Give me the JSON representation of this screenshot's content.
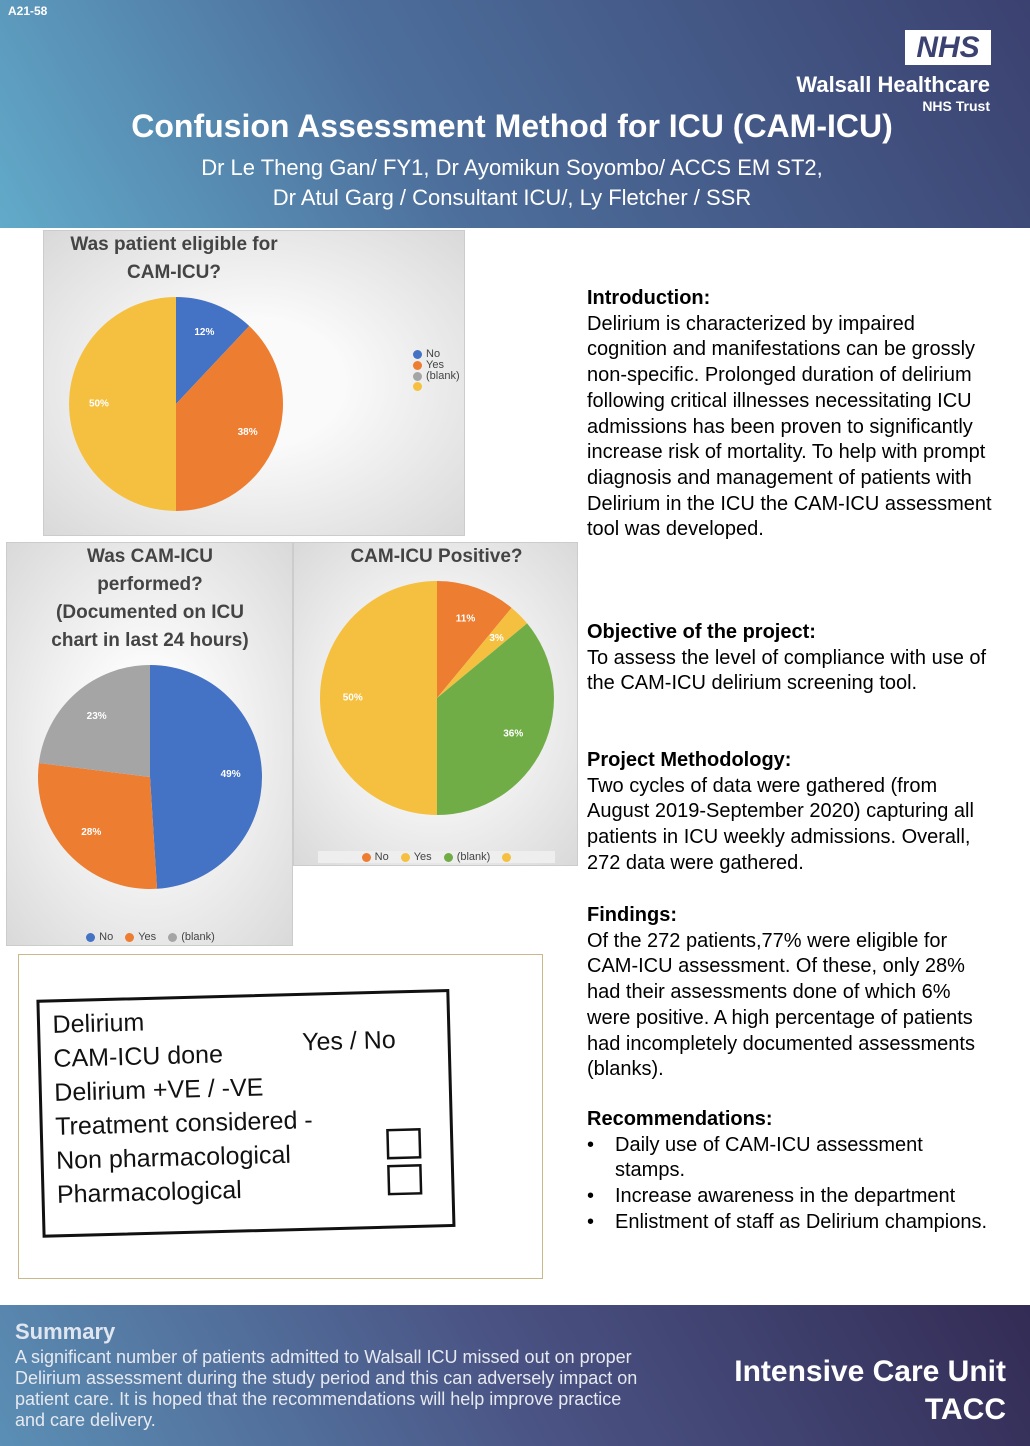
{
  "header": {
    "code": "A21-58",
    "logo": "NHS",
    "org": "Walsall Healthcare",
    "trust": "NHS Trust",
    "title": "Confusion Assessment Method for ICU (CAM-ICU)",
    "authors": [
      "Dr Le Theng Gan/ FY1, Dr Ayomikun Soyombo/ ACCS EM ST2,",
      "Dr Atul Garg / Consultant ICU/, Ly Fletcher / SSR"
    ]
  },
  "chart_data": [
    {
      "type": "pie",
      "title": "Was patient eligible for CAM-ICU?",
      "categories": [
        "No",
        "Yes",
        "(blank)",
        null
      ],
      "values": [
        12,
        38,
        0,
        50
      ],
      "value_labels": [
        "12%",
        "38%",
        null,
        "50%"
      ],
      "colors": [
        "#4472c4",
        "#ed7d31",
        "#a5a5a5",
        "#f5c040"
      ]
    },
    {
      "type": "pie",
      "title": "Was CAM-ICU performed? (Documented on ICU chart in last 24 hours)",
      "categories": [
        "No",
        "Yes",
        "(blank)"
      ],
      "values": [
        49,
        28,
        23
      ],
      "value_labels": [
        "49%",
        "28%",
        "23%"
      ],
      "colors": [
        "#4472c4",
        "#ed7d31",
        "#a5a5a5"
      ]
    },
    {
      "type": "pie",
      "title": "CAM-ICU Positive?",
      "categories": [
        "No",
        "Yes",
        "(blank)",
        null
      ],
      "values": [
        11,
        3,
        36,
        50
      ],
      "value_labels": [
        "11%",
        "3%",
        "36%",
        "50%"
      ],
      "colors": [
        "#ed7d31",
        "#f5c040",
        "#70ad47",
        "#f5c040"
      ]
    }
  ],
  "sections": [
    {
      "heading": "Introduction:",
      "text": "Delirium is characterized by impaired cognition and manifestations can be grossly non-specific. Prolonged duration of delirium following critical illnesses necessitating ICU admissions has been proven to significantly increase risk of mortality. To help with prompt diagnosis and management of patients with Delirium in the ICU the CAM-ICU assessment tool was developed."
    },
    {
      "heading": "Objective of the project:",
      "text": "To assess the level of compliance with use of the CAM-ICU delirium screening tool."
    },
    {
      "heading": "Project Methodology:",
      "text": "Two cycles of data were gathered (from August 2019-September 2020) capturing all patients in ICU weekly admissions. Overall, 272 data were gathered."
    },
    {
      "heading": "Findings:",
      "text": "Of the 272 patients,77% were eligible for CAM-ICU assessment. Of these, only 28% had their assessments done of which 6% were positive. A high percentage of patients had incompletely documented assessments (blanks)."
    }
  ],
  "recommendations": {
    "heading": "Recommendations:",
    "items": [
      "Daily use of CAM-ICU assessment stamps.",
      "Increase awareness in the department",
      "Enlistment of staff as Delirium champions."
    ]
  },
  "stamp": {
    "lines": [
      "Delirium",
      "CAM-ICU done",
      "Delirium +VE / -VE",
      "Treatment considered -",
      "Non pharmacological",
      "Pharmacological"
    ],
    "yes_no": "Yes / No"
  },
  "footer": {
    "heading": "Summary",
    "text": "A significant number of patients admitted to Walsall ICU missed out on proper Delirium assessment during the study period and this can adversely impact on patient care. It is hoped that the recommendations will help improve practice and care delivery.",
    "unit": "Intensive Care Unit",
    "dept": "TACC"
  }
}
